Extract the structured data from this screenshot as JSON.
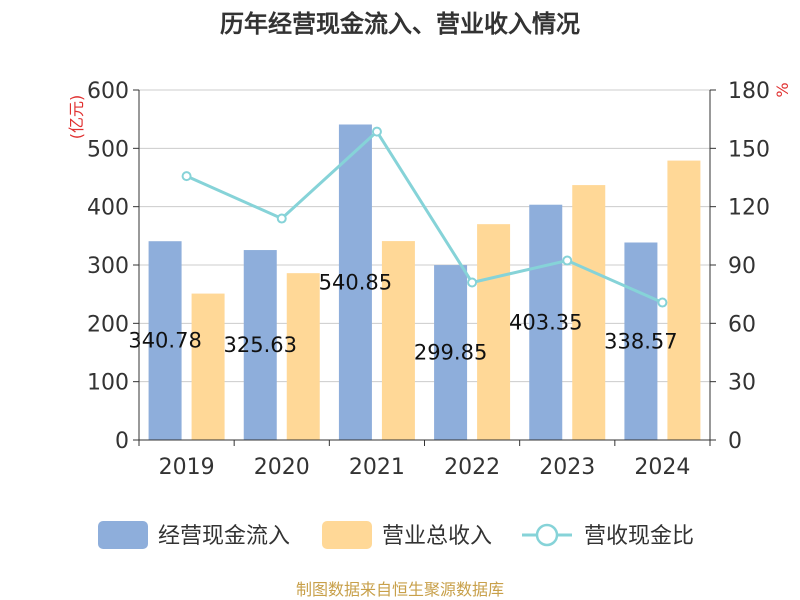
{
  "chart_data": {
    "type": "bar",
    "title": "历年经营现金流入、营业收入情况",
    "categories": [
      "2019",
      "2020",
      "2021",
      "2022",
      "2023",
      "2024"
    ],
    "series": [
      {
        "name": "经营现金流入",
        "type": "bar",
        "axis": "left",
        "color": "#8eaedb",
        "values": [
          340.78,
          325.63,
          540.85,
          299.85,
          403.35,
          338.57
        ]
      },
      {
        "name": "营业总收入",
        "type": "bar",
        "axis": "left",
        "color": "#ffd897",
        "values": [
          251,
          286,
          341,
          370,
          437,
          479
        ]
      },
      {
        "name": "营收现金比",
        "type": "line",
        "axis": "right",
        "color": "#86d3d8",
        "values": [
          135.7,
          113.9,
          158.6,
          81.0,
          92.3,
          70.7
        ]
      }
    ],
    "data_labels": [
      "340.78",
      "325.63",
      "540.85",
      "299.85",
      "403.35",
      "338.57"
    ],
    "y_left": {
      "label": "(亿元)",
      "ylim": [
        0,
        600
      ],
      "ticks": [
        "0",
        "100",
        "200",
        "300",
        "400",
        "500",
        "600"
      ]
    },
    "y_right": {
      "label": "%",
      "ylim": [
        0,
        180
      ],
      "ticks": [
        "0",
        "30",
        "60",
        "90",
        "120",
        "150",
        "180"
      ]
    },
    "xlabel": "",
    "grid": true,
    "legend": "bottom",
    "source": "制图数据来自恒生聚源数据库",
    "colors": {
      "axis_unit": "#e03030",
      "source": "#c8a04a",
      "grid": "#cccccc",
      "axis": "#333333"
    }
  }
}
